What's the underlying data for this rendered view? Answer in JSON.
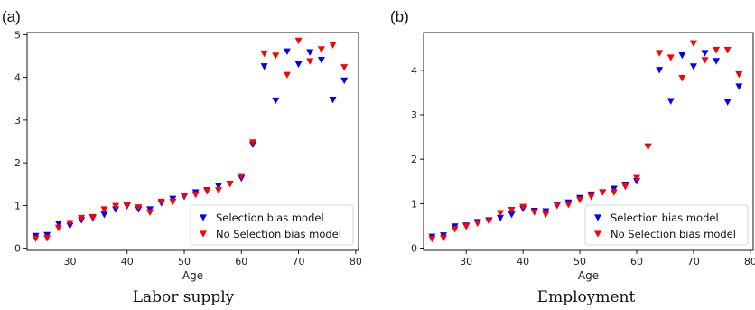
{
  "chart_data": [
    {
      "panel_label": "(a)",
      "caption": "Labor supply",
      "type": "scatter",
      "xlabel": "Age",
      "ylabel": "",
      "xlim": [
        22.5,
        80.5
      ],
      "ylim": [
        -0.05,
        5.05
      ],
      "xticks": [
        30,
        40,
        50,
        60,
        70,
        80
      ],
      "yticks": [
        0,
        1,
        2,
        3,
        4,
        5
      ],
      "legend": "lower-right",
      "series": [
        {
          "name": "Selection bias model",
          "color": "#0000ff",
          "marker": "down-triangle",
          "points": [
            [
              24,
              0.28
            ],
            [
              26,
              0.3
            ],
            [
              28,
              0.57
            ],
            [
              30,
              0.52
            ],
            [
              32,
              0.65
            ],
            [
              34,
              0.7
            ],
            [
              36,
              0.78
            ],
            [
              38,
              0.9
            ],
            [
              40,
              0.98
            ],
            [
              42,
              0.9
            ],
            [
              44,
              0.9
            ],
            [
              46,
              1.05
            ],
            [
              48,
              1.15
            ],
            [
              50,
              1.2
            ],
            [
              52,
              1.3
            ],
            [
              54,
              1.35
            ],
            [
              56,
              1.45
            ],
            [
              58,
              1.5
            ],
            [
              60,
              1.63
            ],
            [
              62,
              2.42
            ],
            [
              64,
              4.25
            ],
            [
              66,
              3.45
            ],
            [
              68,
              4.6
            ],
            [
              70,
              4.3
            ],
            [
              72,
              4.58
            ],
            [
              74,
              4.4
            ],
            [
              76,
              3.47
            ],
            [
              78,
              3.92
            ]
          ]
        },
        {
          "name": "No Selection bias model",
          "color": "#ff0000",
          "marker": "down-triangle",
          "points": [
            [
              24,
              0.22
            ],
            [
              26,
              0.23
            ],
            [
              28,
              0.47
            ],
            [
              30,
              0.58
            ],
            [
              32,
              0.7
            ],
            [
              34,
              0.72
            ],
            [
              36,
              0.9
            ],
            [
              38,
              0.98
            ],
            [
              40,
              1.0
            ],
            [
              42,
              0.95
            ],
            [
              44,
              0.83
            ],
            [
              46,
              1.08
            ],
            [
              48,
              1.08
            ],
            [
              50,
              1.22
            ],
            [
              52,
              1.25
            ],
            [
              54,
              1.33
            ],
            [
              56,
              1.35
            ],
            [
              58,
              1.5
            ],
            [
              60,
              1.68
            ],
            [
              62,
              2.47
            ],
            [
              64,
              4.55
            ],
            [
              66,
              4.5
            ],
            [
              68,
              4.05
            ],
            [
              70,
              4.85
            ],
            [
              72,
              4.37
            ],
            [
              74,
              4.65
            ],
            [
              76,
              4.75
            ],
            [
              78,
              4.23
            ]
          ]
        }
      ]
    },
    {
      "panel_label": "(b)",
      "caption": "Employment",
      "type": "scatter",
      "xlabel": "Age",
      "ylabel": "",
      "xlim": [
        22.5,
        80.5
      ],
      "ylim": [
        -0.05,
        4.85
      ],
      "xticks": [
        30,
        40,
        50,
        60,
        70,
        80
      ],
      "yticks": [
        0,
        1,
        2,
        3,
        4
      ],
      "legend": "lower-right",
      "series": [
        {
          "name": "Selection bias model",
          "color": "#0000ff",
          "marker": "down-triangle",
          "points": [
            [
              24,
              0.25
            ],
            [
              26,
              0.28
            ],
            [
              28,
              0.48
            ],
            [
              30,
              0.5
            ],
            [
              32,
              0.58
            ],
            [
              34,
              0.62
            ],
            [
              36,
              0.67
            ],
            [
              38,
              0.75
            ],
            [
              40,
              0.88
            ],
            [
              42,
              0.83
            ],
            [
              44,
              0.82
            ],
            [
              46,
              0.95
            ],
            [
              48,
              1.02
            ],
            [
              50,
              1.12
            ],
            [
              52,
              1.2
            ],
            [
              54,
              1.25
            ],
            [
              56,
              1.33
            ],
            [
              58,
              1.42
            ],
            [
              60,
              1.5
            ],
            [
              62,
              2.28
            ],
            [
              64,
              4.0
            ],
            [
              66,
              3.3
            ],
            [
              68,
              4.33
            ],
            [
              70,
              4.08
            ],
            [
              72,
              4.38
            ],
            [
              74,
              4.2
            ],
            [
              76,
              3.28
            ],
            [
              78,
              3.63
            ]
          ]
        },
        {
          "name": "No Selection bias model",
          "color": "#ff0000",
          "marker": "down-triangle",
          "points": [
            [
              24,
              0.2
            ],
            [
              26,
              0.22
            ],
            [
              28,
              0.42
            ],
            [
              30,
              0.48
            ],
            [
              32,
              0.55
            ],
            [
              34,
              0.6
            ],
            [
              36,
              0.78
            ],
            [
              38,
              0.85
            ],
            [
              40,
              0.92
            ],
            [
              42,
              0.8
            ],
            [
              44,
              0.75
            ],
            [
              46,
              0.97
            ],
            [
              48,
              0.97
            ],
            [
              50,
              1.08
            ],
            [
              52,
              1.15
            ],
            [
              54,
              1.25
            ],
            [
              56,
              1.25
            ],
            [
              58,
              1.38
            ],
            [
              60,
              1.57
            ],
            [
              62,
              2.28
            ],
            [
              64,
              4.38
            ],
            [
              66,
              4.28
            ],
            [
              68,
              3.82
            ],
            [
              70,
              4.6
            ],
            [
              72,
              4.22
            ],
            [
              74,
              4.45
            ],
            [
              76,
              4.45
            ],
            [
              78,
              3.9
            ]
          ]
        }
      ]
    }
  ]
}
